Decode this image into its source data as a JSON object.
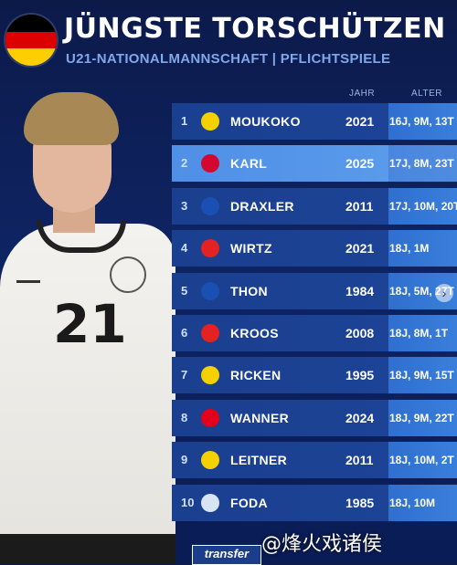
{
  "header": {
    "title": "JÜNGSTE TORSCHÜTZEN",
    "subtitle": "U21-NATIONALMANNSCHAFT | PFLICHTSPIELE",
    "flag_colors": [
      "#000000",
      "#dd0000",
      "#ffce00"
    ]
  },
  "columns": {
    "jahr": "JAHR",
    "alter": "ALTER"
  },
  "player": {
    "shirt_number": "21"
  },
  "rows": [
    {
      "rank": "1",
      "club_icon": "bvb-logo",
      "logo_color": "#f5d100",
      "name": "MOUKOKO",
      "year": "2021",
      "age": "16J, 9M, 13T"
    },
    {
      "rank": "2",
      "club_icon": "fcb-logo",
      "logo_color": "#d3072f",
      "name": "KARL",
      "year": "2025",
      "age": "17J, 8M, 23T"
    },
    {
      "rank": "3",
      "club_icon": "s04-logo",
      "logo_color": "#1a4fb4",
      "name": "DRAXLER",
      "year": "2011",
      "age": "17J, 10M, 20T"
    },
    {
      "rank": "4",
      "club_icon": "b04-logo",
      "logo_color": "#e32221",
      "name": "WIRTZ",
      "year": "2021",
      "age": "18J, 1M"
    },
    {
      "rank": "5",
      "club_icon": "s04-logo",
      "logo_color": "#1a4fb4",
      "name": "THON",
      "year": "1984",
      "age": "18J, 5M, 27T"
    },
    {
      "rank": "6",
      "club_icon": "b04-logo",
      "logo_color": "#e32221",
      "name": "KROOS",
      "year": "2008",
      "age": "18J, 8M, 1T"
    },
    {
      "rank": "7",
      "club_icon": "bvb-logo",
      "logo_color": "#f5d100",
      "name": "RICKEN",
      "year": "1995",
      "age": "18J, 9M, 15T"
    },
    {
      "rank": "8",
      "club_icon": "fch-logo",
      "logo_color": "#e2001a",
      "name": "WANNER",
      "year": "2024",
      "age": "18J, 9M, 22T"
    },
    {
      "rank": "9",
      "club_icon": "bvb-logo",
      "logo_color": "#f5d100",
      "name": "LEITNER",
      "year": "2011",
      "age": "18J, 10M, 2T"
    },
    {
      "rank": "10",
      "club_icon": "dsc-logo",
      "logo_color": "#d9e4f2",
      "name": "FODA",
      "year": "1985",
      "age": "18J, 10M"
    }
  ],
  "footer": {
    "brand": "transfer",
    "watermark": "@烽火戏诸侯"
  }
}
